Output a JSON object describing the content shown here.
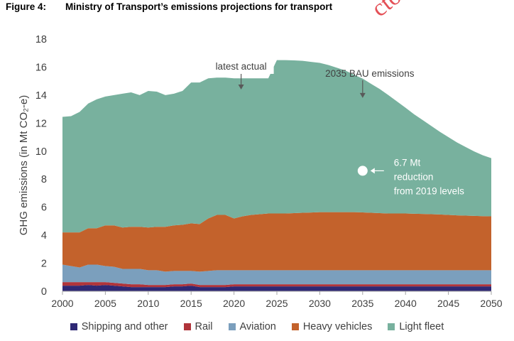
{
  "figure": {
    "label": "Figure 4:",
    "title": "Ministry of Transport’s emissions projections for transport",
    "stamp_text": "ctox"
  },
  "colors": {
    "shipping": "#2e2874",
    "rail": "#b0343a",
    "aviation": "#7b9fbd",
    "heavy": "#c3622c",
    "light": "#78b19e",
    "axis": "#a6a6a6",
    "text": "#404040"
  },
  "chart_data": {
    "type": "area",
    "stacked": true,
    "title": "",
    "xlabel": "",
    "ylabel": "GHG emissions (in Mt CO₂-e)",
    "xlim": [
      2000,
      2050
    ],
    "ylim": [
      0,
      18
    ],
    "x_ticks": [
      2000,
      2005,
      2010,
      2015,
      2020,
      2025,
      2030,
      2035,
      2040,
      2045,
      2050
    ],
    "y_ticks": [
      0,
      2,
      4,
      6,
      8,
      10,
      12,
      14,
      16,
      18
    ],
    "grid": false,
    "legend_position": "bottom",
    "x": [
      2000,
      2001,
      2002,
      2003,
      2004,
      2005,
      2006,
      2007,
      2008,
      2009,
      2010,
      2011,
      2012,
      2013,
      2014,
      2015,
      2016,
      2017,
      2018,
      2019,
      2020,
      2021,
      2022,
      2023,
      2024,
      2025,
      2026,
      2027,
      2028,
      2029,
      2030,
      2031,
      2032,
      2033,
      2034,
      2035,
      2036,
      2037,
      2038,
      2039,
      2040,
      2041,
      2042,
      2043,
      2044,
      2045,
      2046,
      2047,
      2048,
      2049,
      2050
    ],
    "series": [
      {
        "name": "Shipping and other",
        "values": [
          0.4,
          0.4,
          0.4,
          0.45,
          0.4,
          0.45,
          0.4,
          0.35,
          0.3,
          0.3,
          0.3,
          0.3,
          0.3,
          0.35,
          0.35,
          0.4,
          0.3,
          0.3,
          0.3,
          0.3,
          0.35,
          0.35,
          0.35,
          0.35,
          0.35,
          0.35,
          0.35,
          0.35,
          0.35,
          0.35,
          0.35,
          0.35,
          0.35,
          0.35,
          0.35,
          0.35,
          0.35,
          0.35,
          0.35,
          0.35,
          0.35,
          0.35,
          0.35,
          0.35,
          0.35,
          0.35,
          0.35,
          0.35,
          0.35,
          0.35,
          0.35
        ]
      },
      {
        "name": "Rail",
        "values": [
          0.25,
          0.25,
          0.25,
          0.2,
          0.25,
          0.2,
          0.2,
          0.2,
          0.2,
          0.2,
          0.15,
          0.15,
          0.15,
          0.15,
          0.15,
          0.15,
          0.15,
          0.15,
          0.15,
          0.15,
          0.15,
          0.15,
          0.15,
          0.15,
          0.15,
          0.15,
          0.15,
          0.15,
          0.15,
          0.15,
          0.15,
          0.15,
          0.15,
          0.15,
          0.15,
          0.15,
          0.15,
          0.15,
          0.15,
          0.15,
          0.15,
          0.15,
          0.15,
          0.15,
          0.15,
          0.15,
          0.15,
          0.15,
          0.15,
          0.15,
          0.15
        ]
      },
      {
        "name": "Aviation",
        "values": [
          1.25,
          1.15,
          1.05,
          1.25,
          1.25,
          1.15,
          1.15,
          1.05,
          1.1,
          1.1,
          1.05,
          1.05,
          0.95,
          0.95,
          0.95,
          0.9,
          0.95,
          1.0,
          1.05,
          1.05,
          1.0,
          1.0,
          1.0,
          1.0,
          1.0,
          1.0,
          1.0,
          1.0,
          1.0,
          1.0,
          1.0,
          1.0,
          1.0,
          1.0,
          1.0,
          1.0,
          1.0,
          1.0,
          1.0,
          1.0,
          1.0,
          1.0,
          1.0,
          1.0,
          1.0,
          1.0,
          1.0,
          1.0,
          1.0,
          1.0,
          1.0
        ]
      },
      {
        "name": "Heavy vehicles",
        "values": [
          2.3,
          2.4,
          2.5,
          2.6,
          2.6,
          2.9,
          2.95,
          2.95,
          3.0,
          3.0,
          3.05,
          3.1,
          3.2,
          3.25,
          3.3,
          3.4,
          3.4,
          3.75,
          3.95,
          3.95,
          3.7,
          3.85,
          3.95,
          4.0,
          4.05,
          4.05,
          4.05,
          4.08,
          4.1,
          4.12,
          4.15,
          4.15,
          4.15,
          4.15,
          4.15,
          4.13,
          4.1,
          4.08,
          4.05,
          4.05,
          4.05,
          4.03,
          4.02,
          4.0,
          3.98,
          3.95,
          3.92,
          3.9,
          3.88,
          3.86,
          3.85
        ]
      },
      {
        "name": "Light fleet",
        "values": [
          8.25,
          8.3,
          8.6,
          8.9,
          9.2,
          9.2,
          9.3,
          9.55,
          9.6,
          9.4,
          9.75,
          9.65,
          9.4,
          9.4,
          9.55,
          10.05,
          10.1,
          10.0,
          9.8,
          9.8,
          10.0,
          9.85,
          9.75,
          9.7,
          9.65,
          10.95,
          10.95,
          10.9,
          10.85,
          10.75,
          10.65,
          10.5,
          10.3,
          10.1,
          9.8,
          9.55,
          9.2,
          8.85,
          8.45,
          8.0,
          7.55,
          7.1,
          6.7,
          6.3,
          5.9,
          5.55,
          5.2,
          4.9,
          4.6,
          4.35,
          4.15
        ]
      }
    ],
    "annotations": [
      {
        "text": "latest actual",
        "x": 2020,
        "arrow_to_y": 14.4
      },
      {
        "text": "2035 BAU emissions",
        "x": 2035,
        "arrow_to_y": 13.8
      },
      {
        "text_lines": [
          "6.7 Mt",
          "reduction",
          "from 2019 levels"
        ],
        "marker_x": 2035,
        "marker_y": 8.6
      }
    ]
  }
}
